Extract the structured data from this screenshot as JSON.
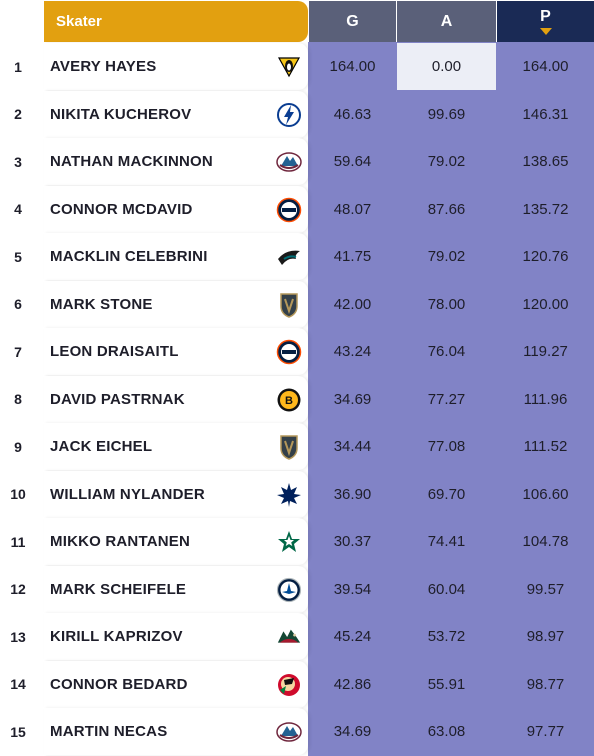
{
  "header": {
    "skater": "Skater",
    "g": "G",
    "a": "A",
    "p": "P"
  },
  "rows": [
    {
      "rank": "1",
      "name": "AVERY HAYES",
      "team_icon": "penguins-logo-icon",
      "g": "164.00",
      "a": "0.00",
      "p": "164.00"
    },
    {
      "rank": "2",
      "name": "NIKITA KUCHEROV",
      "team_icon": "lightning-logo-icon",
      "g": "46.63",
      "a": "99.69",
      "p": "146.31"
    },
    {
      "rank": "3",
      "name": "NATHAN MACKINNON",
      "team_icon": "avalanche-logo-icon",
      "g": "59.64",
      "a": "79.02",
      "p": "138.65"
    },
    {
      "rank": "4",
      "name": "CONNOR MCDAVID",
      "team_icon": "oilers-logo-icon",
      "g": "48.07",
      "a": "87.66",
      "p": "135.72"
    },
    {
      "rank": "5",
      "name": "MACKLIN CELEBRINI",
      "team_icon": "sharks-logo-icon",
      "g": "41.75",
      "a": "79.02",
      "p": "120.76"
    },
    {
      "rank": "6",
      "name": "MARK STONE",
      "team_icon": "golden-knights-logo-icon",
      "g": "42.00",
      "a": "78.00",
      "p": "120.00"
    },
    {
      "rank": "7",
      "name": "LEON DRAISAITL",
      "team_icon": "oilers-logo-icon",
      "g": "43.24",
      "a": "76.04",
      "p": "119.27"
    },
    {
      "rank": "8",
      "name": "DAVID PASTRNAK",
      "team_icon": "bruins-logo-icon",
      "g": "34.69",
      "a": "77.27",
      "p": "111.96"
    },
    {
      "rank": "9",
      "name": "JACK EICHEL",
      "team_icon": "golden-knights-logo-icon",
      "g": "34.44",
      "a": "77.08",
      "p": "111.52"
    },
    {
      "rank": "10",
      "name": "WILLIAM NYLANDER",
      "team_icon": "maple-leafs-logo-icon",
      "g": "36.90",
      "a": "69.70",
      "p": "106.60"
    },
    {
      "rank": "11",
      "name": "MIKKO RANTANEN",
      "team_icon": "stars-logo-icon",
      "g": "30.37",
      "a": "74.41",
      "p": "104.78"
    },
    {
      "rank": "12",
      "name": "MARK SCHEIFELE",
      "team_icon": "jets-logo-icon",
      "g": "39.54",
      "a": "60.04",
      "p": "99.57"
    },
    {
      "rank": "13",
      "name": "KIRILL KAPRIZOV",
      "team_icon": "wild-logo-icon",
      "g": "45.24",
      "a": "53.72",
      "p": "98.97"
    },
    {
      "rank": "14",
      "name": "CONNOR BEDARD",
      "team_icon": "blackhawks-logo-icon",
      "g": "42.86",
      "a": "55.91",
      "p": "98.77"
    },
    {
      "rank": "15",
      "name": "MARTIN NECAS",
      "team_icon": "avalanche-logo-icon",
      "g": "34.69",
      "a": "63.08",
      "p": "97.77"
    }
  ],
  "colors": {
    "accent": "#e2a010",
    "header_gray": "#5a6079",
    "header_navy": "#1a2a55",
    "stat_cell": "#8183c6",
    "highlight_cell": "#eceef6"
  }
}
